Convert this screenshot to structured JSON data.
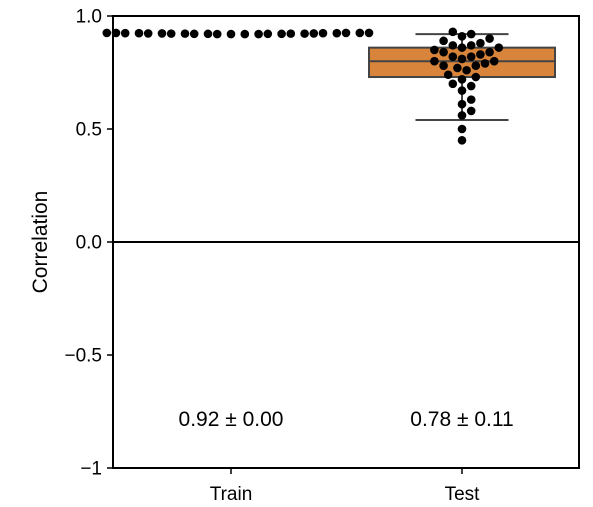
{
  "chart_data": {
    "type": "box",
    "title": "",
    "xlabel": "",
    "ylabel": "Correlation",
    "ylim": [
      -1.0,
      1.0
    ],
    "y_ticks": [
      {
        "value": 1.0,
        "label": "1.0"
      },
      {
        "value": 0.5,
        "label": "0.5"
      },
      {
        "value": 0.0,
        "label": "0.0"
      },
      {
        "value": -0.5,
        "label": "−0.5"
      },
      {
        "value": -1.0,
        "label": "−1"
      }
    ],
    "zero_line": 0.0,
    "categories": [
      "Train",
      "Test"
    ],
    "groups": [
      {
        "name": "Train",
        "points": [
          0.925,
          0.925,
          0.925,
          0.924,
          0.924,
          0.923,
          0.922,
          0.922,
          0.921,
          0.921,
          0.92,
          0.92,
          0.92,
          0.92,
          0.921,
          0.921,
          0.922,
          0.922,
          0.923,
          0.923,
          0.924,
          0.924,
          0.925,
          0.925
        ],
        "annotation": "0.92 ± 0.00"
      },
      {
        "name": "Test",
        "box": {
          "q1": 0.73,
          "median": 0.8,
          "q3": 0.86,
          "whisker_low": 0.54,
          "whisker_high": 0.92
        },
        "box_color": "#d9843b",
        "points": [
          0.93,
          0.92,
          0.91,
          0.9,
          0.89,
          0.88,
          0.87,
          0.87,
          0.86,
          0.86,
          0.85,
          0.84,
          0.84,
          0.83,
          0.82,
          0.82,
          0.81,
          0.8,
          0.8,
          0.79,
          0.78,
          0.78,
          0.77,
          0.76,
          0.74,
          0.73,
          0.72,
          0.7,
          0.69,
          0.67,
          0.63,
          0.61,
          0.58,
          0.56,
          0.5,
          0.45
        ],
        "annotation": "0.78 ± 0.11"
      }
    ],
    "point_color": "#000000",
    "axis_color": "#000000",
    "line_color": "#444444"
  }
}
